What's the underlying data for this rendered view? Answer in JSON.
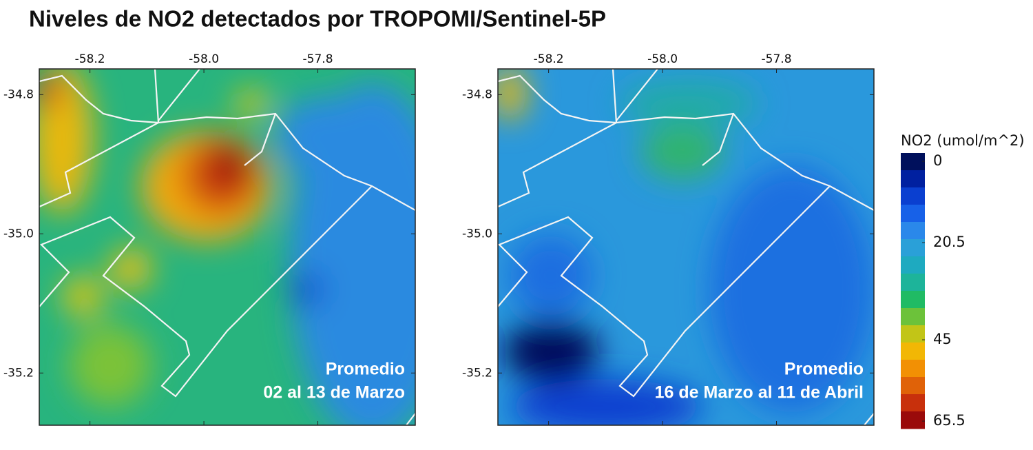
{
  "title": "Niveles de NO2 detectados por TROPOMI/Sentinel-5P",
  "lon_range": [
    -58.289,
    -57.629
  ],
  "lat_range": [
    -34.763,
    -35.275
  ],
  "lon_ticks": [
    -58.2,
    {
      "value": -58.0,
      "label": "-58.0"
    },
    -57.8
  ],
  "lat_ticks": [
    -34.8,
    {
      "value": -35.0,
      "label": "-35.0"
    },
    -35.2
  ],
  "panels": [
    {
      "label": [
        "Promedio",
        "02 al 13 de Marzo"
      ]
    },
    {
      "label": [
        "Promedio",
        "16 de Marzo al 11 de Abril"
      ]
    }
  ],
  "colorbar": {
    "label": "NO2 (umol/m^2)",
    "range": [
      -2.1,
      67.4
    ],
    "ticks": [
      0,
      20.5,
      45,
      65.5
    ],
    "colors": [
      "#00105c",
      "#0020a0",
      "#0a3fd0",
      "#1761e8",
      "#2a88ea",
      "#2aa0d8",
      "#1eaac0",
      "#1db49a",
      "#20bb64",
      "#6cc23a",
      "#c2c517",
      "#f2b705",
      "#f29004",
      "#e06208",
      "#c8300c",
      "#9a0a0a"
    ]
  }
}
